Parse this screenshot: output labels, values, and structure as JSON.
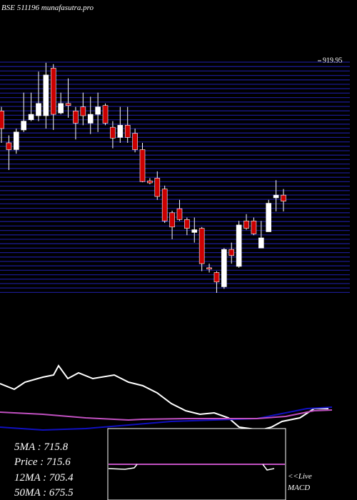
{
  "chart_data": {
    "type": "candlestick",
    "title": "BSE 511196  munafasutra.pro",
    "open": [
      846,
      799,
      789,
      818,
      833,
      839,
      839,
      909,
      843,
      857,
      846,
      852,
      828,
      841,
      854,
      822,
      807,
      825,
      813,
      789,
      743,
      747,
      731,
      696,
      702,
      686,
      667,
      673,
      615,
      608,
      587,
      642,
      617,
      684,
      684,
      644,
      668,
      718,
      722
    ],
    "high": [
      852,
      810,
      820,
      873,
      873,
      904,
      917,
      915,
      873,
      894,
      852,
      873,
      867,
      873,
      857,
      831,
      852,
      852,
      820,
      799,
      747,
      757,
      736,
      699,
      715,
      689,
      689,
      675,
      621,
      610,
      644,
      652,
      684,
      694,
      689,
      684,
      715,
      744,
      731
    ],
    "low": [
      799,
      759,
      783,
      815,
      831,
      831,
      820,
      818,
      841,
      836,
      804,
      825,
      812,
      815,
      825,
      791,
      799,
      799,
      785,
      741,
      738,
      715,
      681,
      657,
      684,
      663,
      652,
      610,
      608,
      578,
      584,
      621,
      615,
      671,
      663,
      644,
      668,
      698,
      698
    ],
    "close": [
      820,
      789,
      815,
      831,
      841,
      857,
      899,
      841,
      857,
      854,
      828,
      839,
      841,
      852,
      828,
      806,
      825,
      807,
      789,
      742,
      740,
      720,
      684,
      675,
      686,
      673,
      671,
      621,
      613,
      594,
      642,
      633,
      678,
      673,
      665,
      659,
      710,
      722,
      713
    ],
    "ylim": [
      578,
      920
    ],
    "yticks": [
      919.95
    ],
    "up_color": "#ffffff",
    "down_color": "#cc0000",
    "grid_color": "#1a1a8c",
    "grid": true,
    "stats": [
      "5MA : 715.8",
      "Price : 715.6",
      "12MA : 705.4",
      "50MA : 675.5"
    ],
    "live": "<<Live",
    "indicator": "MACD"
  }
}
